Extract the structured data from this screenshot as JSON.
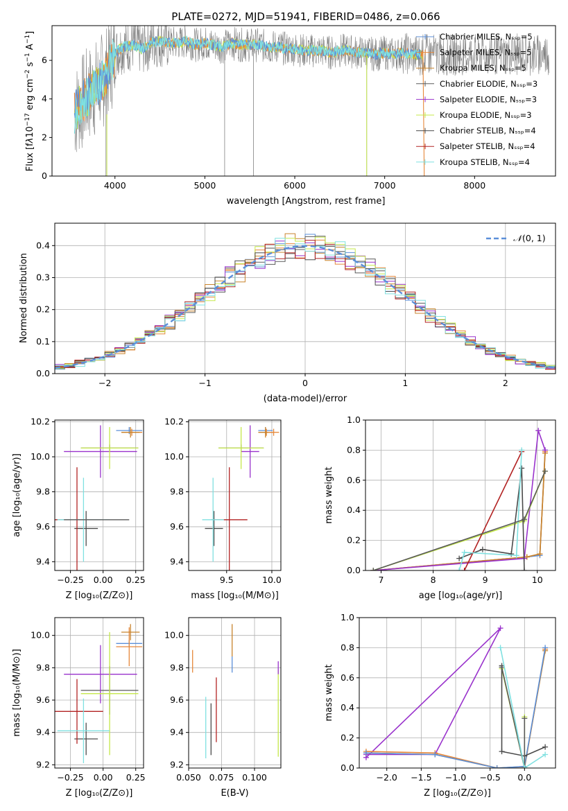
{
  "title": "PLATE=0272, MJD=51941, FIBERID=0486, z=0.066",
  "colors": {
    "chabrier_miles": "#5b8fd9",
    "salpeter_miles": "#e6883a",
    "kroupa_miles": "#c8832c",
    "chabrier_elodie": "#5a5a5a",
    "salpeter_elodie": "#9932cc",
    "kroupa_elodie": "#c5e84a",
    "chabrier_stelib": "#4a4a4a",
    "salpeter_stelib": "#b22222",
    "kroupa_stelib": "#7fe0e0",
    "data": "#808080",
    "normal": "#5b8fd9"
  },
  "chart_data": [
    {
      "id": "spectrum",
      "type": "line",
      "title": "PLATE=0272, MJD=51941, FIBERID=0486, z=0.066",
      "xlabel": "wavelength [Angstrom, rest frame]",
      "ylabel": "Flux [fλ10⁻¹⁷ erg cm⁻² s⁻¹ A⁻¹]",
      "xlim": [
        3300,
        8900
      ],
      "ylim": [
        0,
        7.8
      ],
      "xticks": [
        "4000",
        "5000",
        "6000",
        "7000",
        "8000"
      ],
      "yticks": [
        "0",
        "2",
        "4",
        "6"
      ],
      "legend_position": "top-right",
      "legend": [
        "Chabrier MILES, Nₛₛₚ=5",
        "Salpeter MILES, Nₛₛₚ=5",
        "Kroupa MILES, Nₛₛₚ=5",
        "Chabrier ELODIE, Nₛₛₚ=3",
        "Salpeter ELODIE, Nₛₛₚ=3",
        "Kroupa ELODIE, Nₛₛₚ=3",
        "Chabrier STELIB, Nₛₛₚ=4",
        "Salpeter STELIB, Nₛₛₚ=4",
        "Kroupa STELIB, Nₛₛₚ=4"
      ],
      "model_x": [
        3550,
        3600,
        3650,
        3700,
        3750,
        3800,
        3850,
        3900,
        3950,
        4000,
        4050,
        4100,
        4200,
        4300,
        4400,
        4500,
        4600,
        4700,
        4800,
        4900,
        5000,
        5100,
        5200,
        5300,
        5400,
        5500,
        5600,
        5700,
        5800,
        5900,
        6000,
        6100,
        6200,
        6300,
        6400,
        6500,
        6600,
        6700,
        6800,
        6900,
        7000,
        7100,
        7200,
        7300,
        7400
      ],
      "model_y": [
        3.3,
        3.6,
        3.9,
        4.2,
        4.4,
        4.6,
        4.9,
        5.2,
        5.8,
        6.3,
        6.6,
        6.7,
        6.8,
        6.6,
        6.9,
        7.0,
        6.9,
        6.9,
        7.0,
        6.8,
        6.9,
        6.8,
        6.7,
        6.9,
        6.8,
        6.8,
        6.8,
        6.7,
        6.7,
        6.6,
        6.6,
        6.5,
        6.5,
        6.5,
        6.4,
        6.5,
        6.5,
        6.4,
        6.4,
        6.3,
        6.4,
        6.3,
        6.4,
        6.3,
        6.3
      ]
    },
    {
      "id": "residuals",
      "type": "step",
      "xlabel": "(data-model)/error",
      "ylabel": "Normed distribution",
      "xlim": [
        -2.5,
        2.5
      ],
      "ylim": [
        0,
        0.47
      ],
      "xticks": [
        "−2",
        "−1",
        "0",
        "1",
        "2"
      ],
      "yticks": [
        "0.0",
        "0.1",
        "0.2",
        "0.3",
        "0.4"
      ],
      "legend": [
        "𝒩(0, 1)"
      ],
      "legend_position": "top-right",
      "bin_edges_start": -2.5,
      "bin_width": 0.1,
      "normal_mean": 0,
      "normal_sigma": 1
    },
    {
      "id": "age_vs_Z",
      "type": "errorbar",
      "xlabel": "Z [log₁₀(Z/Z⊙)]",
      "ylabel": "age  [log₁₀(age/yr)]",
      "xlim": [
        -0.37,
        0.31
      ],
      "ylim": [
        9.35,
        10.21
      ],
      "xticks": [
        "−0.25",
        "0.00",
        "0.25"
      ],
      "yticks": [
        "9.4",
        "9.6",
        "9.8",
        "10.0",
        "10.2"
      ],
      "points": [
        {
          "model": "chabrier_miles",
          "x": 0.2,
          "y": 10.15,
          "xerr": 0.1,
          "yerr": 0.02
        },
        {
          "model": "salpeter_miles",
          "x": 0.22,
          "y": 10.14,
          "xerr": 0.08,
          "yerr": 0.02
        },
        {
          "model": "kroupa_miles",
          "x": 0.21,
          "y": 10.14,
          "xerr": 0.07,
          "yerr": 0.03
        },
        {
          "model": "chabrier_elodie",
          "x": 0.05,
          "y": 10.05,
          "xerr": 0.22,
          "yerr": 0.02
        },
        {
          "model": "salpeter_elodie",
          "x": -0.02,
          "y": 10.03,
          "xerr": 0.28,
          "yerr": 0.15
        },
        {
          "model": "kroupa_elodie",
          "x": 0.05,
          "y": 10.05,
          "xerr": 0.22,
          "yerr": 0.12
        },
        {
          "model": "chabrier_stelib",
          "x": -0.13,
          "y": 9.59,
          "xerr": 0.09,
          "yerr": 0.1
        },
        {
          "model": "salpeter_stelib",
          "x": -0.2,
          "y": 9.64,
          "xerr": 0.2,
          "yerr": 0.3
        },
        {
          "model": "kroupa_stelib",
          "x": -0.15,
          "y": 9.64,
          "xerr": 0.2,
          "yerr": 0.24
        },
        {
          "model": "chabrier_elodie",
          "x": -0.05,
          "y": 9.64,
          "xerr": 0.25,
          "yerr": 0.0
        }
      ]
    },
    {
      "id": "age_vs_mass",
      "type": "errorbar",
      "xlabel": "mass [log₁₀(M/M⊙)]",
      "ylabel": "",
      "xlim": [
        9.08,
        10.1
      ],
      "ylim": [
        9.35,
        10.21
      ],
      "xticks": [
        "9.5",
        "10.0"
      ],
      "yticks": [
        "9.4",
        "9.6",
        "9.8",
        "10.0",
        "10.2"
      ],
      "points": [
        {
          "model": "chabrier_miles",
          "x": 9.93,
          "y": 10.15,
          "xerr": 0.08,
          "yerr": 0.02
        },
        {
          "model": "salpeter_miles",
          "x": 9.94,
          "y": 10.14,
          "xerr": 0.08,
          "yerr": 0.02
        },
        {
          "model": "kroupa_miles",
          "x": 9.93,
          "y": 10.14,
          "xerr": 0.08,
          "yerr": 0.03
        },
        {
          "model": "salpeter_miles",
          "x": 10.02,
          "y": 10.14,
          "xerr": 0.06,
          "yerr": 0.02
        },
        {
          "model": "chabrier_elodie",
          "x": 9.66,
          "y": 10.05,
          "xerr": 0.25,
          "yerr": 0.02
        },
        {
          "model": "salpeter_elodie",
          "x": 9.76,
          "y": 10.03,
          "xerr": 0.1,
          "yerr": 0.15
        },
        {
          "model": "kroupa_elodie",
          "x": 9.66,
          "y": 10.05,
          "xerr": 0.25,
          "yerr": 0.12
        },
        {
          "model": "chabrier_stelib",
          "x": 9.36,
          "y": 9.59,
          "xerr": 0.1,
          "yerr": 0.1
        },
        {
          "model": "salpeter_stelib",
          "x": 9.53,
          "y": 9.64,
          "xerr": 0.2,
          "yerr": 0.3
        },
        {
          "model": "kroupa_stelib",
          "x": 9.35,
          "y": 9.64,
          "xerr": 0.12,
          "yerr": 0.24
        }
      ]
    },
    {
      "id": "weight_vs_age",
      "type": "line",
      "xlabel": "age  [log₁₀(age/yr)]",
      "ylabel": "mass weight",
      "xlim": [
        6.7,
        10.35
      ],
      "ylim": [
        0,
        1
      ],
      "xticks": [
        "7",
        "8",
        "9",
        "10"
      ],
      "yticks": [
        "0.0",
        "0.2",
        "0.4",
        "0.6",
        "0.8",
        "1.0"
      ],
      "series": [
        {
          "model": "chabrier_miles",
          "x": [
            6.85,
            9.8,
            10.05,
            10.15
          ],
          "y": [
            0.0,
            0.09,
            0.1,
            0.8
          ]
        },
        {
          "model": "salpeter_miles",
          "x": [
            6.85,
            9.8,
            10.05,
            10.15
          ],
          "y": [
            0.0,
            0.09,
            0.11,
            0.79
          ]
        },
        {
          "model": "kroupa_miles",
          "x": [
            6.85,
            9.8,
            10.05,
            10.15
          ],
          "y": [
            0.0,
            0.09,
            0.11,
            0.78
          ]
        },
        {
          "model": "salpeter_elodie",
          "x": [
            6.85,
            9.75,
            10.02,
            10.15
          ],
          "y": [
            0.0,
            0.08,
            0.93,
            0.8
          ]
        },
        {
          "model": "kroupa_elodie",
          "x": [
            6.85,
            9.75,
            10.15
          ],
          "y": [
            0.0,
            0.33,
            0.66
          ]
        },
        {
          "model": "chabrier_stelib",
          "x": [
            8.5,
            8.95,
            9.5,
            9.7,
            9.75
          ],
          "y": [
            0.08,
            0.14,
            0.11,
            0.68,
            0.0
          ]
        },
        {
          "model": "salpeter_stelib",
          "x": [
            8.6,
            9.7
          ],
          "y": [
            0.0,
            0.79
          ]
        },
        {
          "model": "kroupa_stelib",
          "x": [
            8.5,
            8.6,
            9.6,
            9.7
          ],
          "y": [
            0.0,
            0.12,
            0.1,
            0.8
          ]
        },
        {
          "model": "chabrier_elodie",
          "x": [
            6.85,
            9.75,
            10.15
          ],
          "y": [
            0.0,
            0.34,
            0.66
          ]
        }
      ]
    },
    {
      "id": "mass_vs_Z",
      "type": "errorbar",
      "xlabel": "Z [log₁₀(Z/Z⊙)]",
      "ylabel": "mass [log₁₀(M/M⊙)]",
      "xlim": [
        -0.37,
        0.31
      ],
      "ylim": [
        9.18,
        10.11
      ],
      "xticks": [
        "−0.25",
        "0.00",
        "0.25"
      ],
      "yticks": [
        "9.2",
        "9.4",
        "9.6",
        "9.8",
        "10.0"
      ],
      "points": [
        {
          "model": "chabrier_miles",
          "x": 0.2,
          "y": 9.95,
          "xerr": 0.1,
          "yerr": 0.02
        },
        {
          "model": "salpeter_miles",
          "x": 0.2,
          "y": 9.93,
          "xerr": 0.1,
          "yerr": 0.12
        },
        {
          "model": "kroupa_miles",
          "x": 0.21,
          "y": 10.02,
          "xerr": 0.07,
          "yerr": 0.05
        },
        {
          "model": "chabrier_elodie",
          "x": 0.05,
          "y": 9.66,
          "xerr": 0.22,
          "yerr": 0.15
        },
        {
          "model": "salpeter_elodie",
          "x": -0.02,
          "y": 9.76,
          "xerr": 0.28,
          "yerr": 0.18
        },
        {
          "model": "kroupa_elodie",
          "x": 0.05,
          "y": 9.64,
          "xerr": 0.22,
          "yerr": 0.38
        },
        {
          "model": "chabrier_stelib",
          "x": -0.13,
          "y": 9.36,
          "xerr": 0.09,
          "yerr": 0.1
        },
        {
          "model": "salpeter_stelib",
          "x": -0.2,
          "y": 9.53,
          "xerr": 0.2,
          "yerr": 0.2
        },
        {
          "model": "kroupa_stelib",
          "x": -0.15,
          "y": 9.41,
          "xerr": 0.2,
          "yerr": 0.2
        }
      ]
    },
    {
      "id": "mass_vs_ebv",
      "type": "errorbar",
      "xlabel": "E(B-V)",
      "ylabel": "",
      "xlim": [
        0.05,
        0.12
      ],
      "ylim": [
        9.18,
        10.11
      ],
      "xticks": [
        "0.050",
        "0.075",
        "0.100"
      ],
      "yticks": [
        "9.2",
        "9.4",
        "9.6",
        "9.8",
        "10.0"
      ],
      "points": [
        {
          "model": "salpeter_miles",
          "x": 0.053,
          "y": 9.84,
          "xerr": 0,
          "yerr": 0.07
        },
        {
          "model": "kroupa_stelib",
          "x": 0.063,
          "y": 9.43,
          "xerr": 0,
          "yerr": 0.19
        },
        {
          "model": "chabrier_stelib",
          "x": 0.067,
          "y": 9.42,
          "xerr": 0,
          "yerr": 0.16
        },
        {
          "model": "salpeter_stelib",
          "x": 0.071,
          "y": 9.54,
          "xerr": 0,
          "yerr": 0.2
        },
        {
          "model": "kroupa_miles",
          "x": 0.083,
          "y": 9.97,
          "xerr": 0,
          "yerr": 0.1
        },
        {
          "model": "chabrier_miles",
          "x": 0.083,
          "y": 9.82,
          "xerr": 0,
          "yerr": 0.05
        },
        {
          "model": "kroupa_elodie",
          "x": 0.118,
          "y": 9.52,
          "xerr": 0,
          "yerr": 0.27
        },
        {
          "model": "salpeter_elodie",
          "x": 0.118,
          "y": 9.8,
          "xerr": 0,
          "yerr": 0.04
        }
      ]
    },
    {
      "id": "weight_vs_Z",
      "type": "line",
      "xlabel": "Z [log₁₀(Z/Z⊙)]",
      "ylabel": "mass weight",
      "xlim": [
        -2.4,
        0.45
      ],
      "ylim": [
        0,
        1
      ],
      "xticks": [
        "−2.0",
        "−1.5",
        "−1.0",
        "−0.5",
        "0.0"
      ],
      "yticks": [
        "0.0",
        "0.2",
        "0.4",
        "0.6",
        "0.8",
        "1.0"
      ],
      "series": [
        {
          "model": "salpeter_elodie",
          "x": [
            -2.3,
            -1.3,
            -0.35,
            -2.3
          ],
          "y": [
            0.09,
            0.09,
            0.93,
            0.07
          ]
        },
        {
          "model": "salpeter_miles",
          "x": [
            -2.3,
            -1.3,
            -0.4,
            0.0,
            0.3
          ],
          "y": [
            0.11,
            0.1,
            0.0,
            0.0,
            0.79
          ]
        },
        {
          "model": "kroupa_miles",
          "x": [
            -2.3,
            -1.3,
            -0.4,
            0.0,
            0.3
          ],
          "y": [
            0.1,
            0.09,
            0.0,
            0.01,
            0.78
          ]
        },
        {
          "model": "chabrier_miles",
          "x": [
            -2.3,
            -1.3,
            -0.4,
            0.0,
            0.3
          ],
          "y": [
            0.1,
            0.09,
            0.0,
            0.01,
            0.8
          ]
        },
        {
          "model": "kroupa_elodie",
          "x": [
            -0.33,
            0.0,
            0.0
          ],
          "y": [
            0.66,
            0.0,
            0.34
          ]
        },
        {
          "model": "chabrier_stelib",
          "x": [
            -0.33,
            -0.33,
            0.0,
            0.3
          ],
          "y": [
            0.68,
            0.11,
            0.08,
            0.14
          ]
        },
        {
          "model": "chabrier_elodie",
          "x": [
            -0.33,
            0.0,
            0.0
          ],
          "y": [
            0.67,
            0.0,
            0.33
          ]
        },
        {
          "model": "kroupa_stelib",
          "x": [
            -0.35,
            0.0,
            0.3
          ],
          "y": [
            0.8,
            0.0,
            0.09
          ]
        }
      ]
    }
  ]
}
